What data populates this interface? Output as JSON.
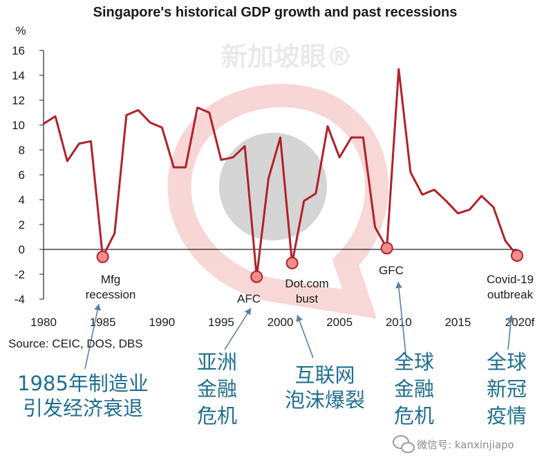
{
  "chart_data": {
    "type": "line",
    "title": "Singapore's historical GDP growth and past recessions",
    "ylabel": "%",
    "ylim": [
      -4,
      16
    ],
    "yticks": [
      -4,
      -2,
      0,
      2,
      4,
      6,
      8,
      10,
      12,
      14,
      16
    ],
    "xlim": [
      1980,
      2020
    ],
    "xtick_labels": [
      "1980",
      "1985",
      "1990",
      "1995",
      "2000",
      "2005",
      "2010",
      "2015",
      "2020f"
    ],
    "xtick_years": [
      1980,
      1985,
      1990,
      1995,
      2000,
      2005,
      2010,
      2015,
      2020
    ],
    "source": "Source: CEIC, DOS, DBS",
    "series": [
      {
        "color": "#b22028",
        "x": [
          1980,
          1981,
          1982,
          1983,
          1984,
          1985,
          1986,
          1987,
          1988,
          1989,
          1990,
          1991,
          1992,
          1993,
          1994,
          1995,
          1996,
          1997,
          1998,
          1999,
          2000,
          2001,
          2002,
          2003,
          2004,
          2005,
          2006,
          2007,
          2008,
          2009,
          2010,
          2011,
          2012,
          2013,
          2014,
          2015,
          2016,
          2017,
          2018,
          2019,
          2020
        ],
        "values": [
          10.1,
          10.7,
          7.1,
          8.5,
          8.7,
          -0.6,
          1.3,
          10.8,
          11.2,
          10.2,
          9.8,
          6.6,
          6.6,
          11.4,
          11.0,
          7.2,
          7.4,
          8.3,
          -2.2,
          5.7,
          9.0,
          -1.1,
          3.9,
          4.5,
          9.9,
          7.4,
          9.0,
          9.0,
          1.8,
          0.1,
          14.5,
          6.2,
          4.4,
          4.8,
          3.9,
          2.9,
          3.2,
          4.3,
          3.4,
          0.7,
          -0.5
        ]
      }
    ],
    "recessions": [
      {
        "year": 1985,
        "value": -0.6,
        "label_lines": [
          "Mfg",
          "recession"
        ],
        "cn_lines": [
          "1985年制造业",
          "引发经济衰退"
        ]
      },
      {
        "year": 1998,
        "value": -2.2,
        "label_lines": [
          "AFC"
        ],
        "cn_lines": [
          "亚洲",
          "金融",
          "危机"
        ]
      },
      {
        "year": 2001,
        "value": -1.1,
        "label_lines": [
          "Dot.com",
          "bust"
        ],
        "cn_lines": [
          "互联网",
          "泡沫爆裂"
        ]
      },
      {
        "year": 2009,
        "value": 0.1,
        "label_lines": [
          "GFC"
        ],
        "cn_lines": [
          "全球",
          "金融",
          "危机"
        ]
      },
      {
        "year": 2020,
        "value": -0.5,
        "label_lines": [
          "Covid-19",
          "outbreak"
        ],
        "cn_lines": [
          "全球",
          "新冠",
          "疫情"
        ]
      }
    ]
  },
  "watermark": {
    "text": "新加坡眼®",
    "color": "#e06a6a"
  },
  "footer": {
    "icon": "wechat-icon",
    "text": "微信号: kanxinjiapo"
  }
}
